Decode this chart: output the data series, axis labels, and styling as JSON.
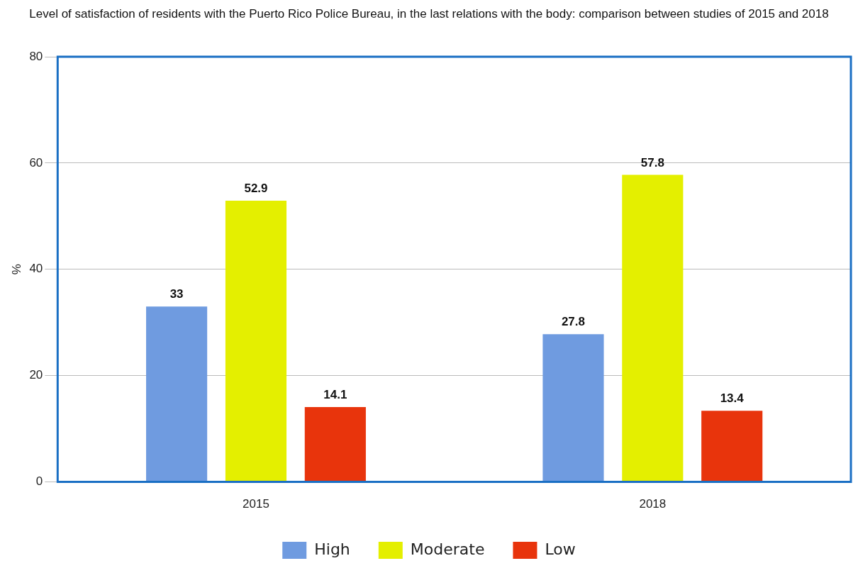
{
  "chart_data": {
    "type": "bar",
    "title": "Level of satisfaction of residents with the Puerto Rico Police Bureau, in the last relations with the body: comparison between studies of 2015 and 2018",
    "ylabel": "%",
    "categories": [
      "2015",
      "2018"
    ],
    "series": [
      {
        "name": "High",
        "color": "#6f9be0",
        "values": [
          33,
          27.8
        ]
      },
      {
        "name": "Moderate",
        "color": "#e4ef00",
        "values": [
          52.9,
          57.8
        ]
      },
      {
        "name": "Low",
        "color": "#e8340c",
        "values": [
          14.1,
          13.4
        ]
      }
    ],
    "ylim": [
      0,
      80
    ],
    "yticks": [
      0,
      20,
      40,
      60,
      80
    ],
    "grid": "y",
    "legend": "bottom",
    "data_labels": true
  }
}
